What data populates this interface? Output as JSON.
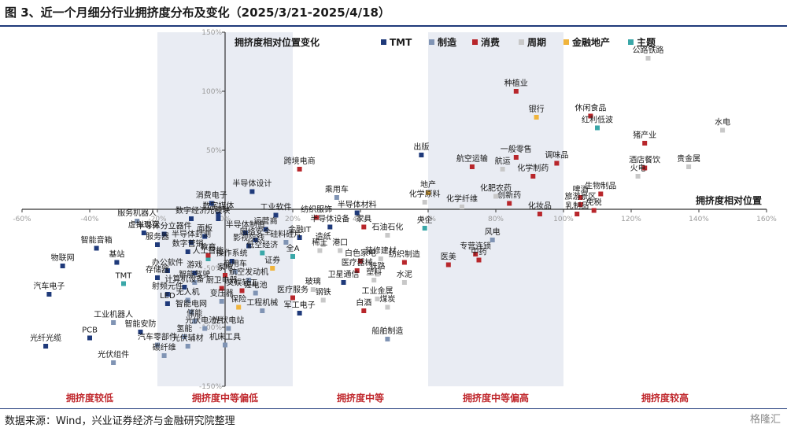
{
  "title": "图 3、近一个月细分行业拥挤度分布及变化（2025/3/21-2025/4/18）",
  "source": "数据来源：Wind，兴业证券经济与金融研究院整理",
  "watermark": "格隆汇",
  "chart_data": {
    "type": "scatter",
    "xlim": [
      -0.6,
      1.6
    ],
    "ylim": [
      -1.5,
      1.5
    ],
    "x_ticks": [
      "-60%",
      "-40%",
      "-20%",
      "0%",
      "20%",
      "40%",
      "60%",
      "80%",
      "100%",
      "120%",
      "140%",
      "160%"
    ],
    "y_ticks": [
      "150%",
      "100%",
      "50%",
      "0%",
      "-50%",
      "-100%",
      "-150%"
    ],
    "xlabel": "拥挤度相对位置",
    "ylabel": "拥挤度相对位置变化",
    "legend": {
      "placement": "top",
      "entries": [
        {
          "key": "TMT",
          "label": "TMT",
          "color": "#1f3a7a"
        },
        {
          "key": "MFG",
          "label": "制造",
          "color": "#8094b4"
        },
        {
          "key": "CON",
          "label": "消费",
          "color": "#b8262b"
        },
        {
          "key": "CYC",
          "label": "周期",
          "color": "#c8c8c8"
        },
        {
          "key": "FIN",
          "label": "金融地产",
          "color": "#f0b43c"
        },
        {
          "key": "THM",
          "label": "主题",
          "color": "#3aa7a8"
        }
      ]
    },
    "zones": [
      {
        "label": "拥挤度较低",
        "x_range": [
          -0.6,
          -0.2
        ],
        "shaded": false
      },
      {
        "label": "拥挤度中等偏低",
        "x_range": [
          -0.2,
          0.2
        ],
        "shaded": true
      },
      {
        "label": "拥挤度中等",
        "x_range": [
          0.2,
          0.6
        ],
        "shaded": false
      },
      {
        "label": "拥挤度中等偏高",
        "x_range": [
          0.6,
          1.0
        ],
        "shaded": true
      },
      {
        "label": "拥挤度较高",
        "x_range": [
          1.0,
          1.6
        ],
        "shaded": false
      }
    ],
    "points": [
      {
        "name": "公路铁路",
        "x": 1.25,
        "y": 1.28,
        "group": "CYC"
      },
      {
        "name": "种植业",
        "x": 0.86,
        "y": 1.0,
        "group": "CON"
      },
      {
        "name": "银行",
        "x": 0.92,
        "y": 0.78,
        "group": "FIN"
      },
      {
        "name": "休闲食品",
        "x": 1.08,
        "y": 0.79,
        "group": "CON"
      },
      {
        "name": "红利低波",
        "x": 1.1,
        "y": 0.69,
        "group": "THM"
      },
      {
        "name": "水电",
        "x": 1.47,
        "y": 0.67,
        "group": "CYC"
      },
      {
        "name": "猪产业",
        "x": 1.24,
        "y": 0.56,
        "group": "CON"
      },
      {
        "name": "出版",
        "x": 0.58,
        "y": 0.46,
        "group": "TMT"
      },
      {
        "name": "一般零售",
        "x": 0.86,
        "y": 0.44,
        "group": "CON"
      },
      {
        "name": "调味品",
        "x": 0.98,
        "y": 0.39,
        "group": "CON"
      },
      {
        "name": "酒店餐饮",
        "x": 1.24,
        "y": 0.35,
        "group": "CON"
      },
      {
        "name": "贵金属",
        "x": 1.37,
        "y": 0.36,
        "group": "CYC"
      },
      {
        "name": "航空运输",
        "x": 0.73,
        "y": 0.36,
        "group": "CON"
      },
      {
        "name": "航运",
        "x": 0.82,
        "y": 0.34,
        "group": "CYC"
      },
      {
        "name": "火电",
        "x": 1.22,
        "y": 0.28,
        "group": "CYC"
      },
      {
        "name": "跨境电商",
        "x": 0.22,
        "y": 0.34,
        "group": "CON"
      },
      {
        "name": "化学制药",
        "x": 0.91,
        "y": 0.28,
        "group": "CON"
      },
      {
        "name": "半导体设计",
        "x": 0.08,
        "y": 0.15,
        "group": "TMT"
      },
      {
        "name": "乘用车",
        "x": 0.33,
        "y": 0.1,
        "group": "MFG"
      },
      {
        "name": "地产",
        "x": 0.6,
        "y": 0.14,
        "group": "FIN"
      },
      {
        "name": "化学原料",
        "x": 0.59,
        "y": 0.06,
        "group": "CYC"
      },
      {
        "name": "化肥农药",
        "x": 0.8,
        "y": 0.11,
        "group": "CYC"
      },
      {
        "name": "创新药",
        "x": 0.84,
        "y": 0.05,
        "group": "CON"
      },
      {
        "name": "化学纤维",
        "x": 0.7,
        "y": 0.02,
        "group": "CYC"
      },
      {
        "name": "啤酒",
        "x": 1.05,
        "y": 0.1,
        "group": "CON"
      },
      {
        "name": "生物制品",
        "x": 1.11,
        "y": 0.13,
        "group": "CON"
      },
      {
        "name": "旅游景区",
        "x": 1.05,
        "y": 0.04,
        "group": "CON"
      },
      {
        "name": "免税",
        "x": 1.09,
        "y": -0.01,
        "group": "CON"
      },
      {
        "name": "乳制品",
        "x": 1.04,
        "y": -0.04,
        "group": "CON"
      },
      {
        "name": "化妆品",
        "x": 0.93,
        "y": -0.04,
        "group": "CON"
      },
      {
        "name": "消费电子",
        "x": -0.04,
        "y": 0.05,
        "group": "TMT"
      },
      {
        "name": "数字媒体",
        "x": -0.02,
        "y": -0.04,
        "group": "TMT"
      },
      {
        "name": "数字经济",
        "x": -0.1,
        "y": -0.08,
        "group": "TMT"
      },
      {
        "name": "光模块",
        "x": -0.02,
        "y": -0.08,
        "group": "TMT"
      },
      {
        "name": "服务机器人",
        "x": -0.26,
        "y": -0.1,
        "group": "MFG"
      },
      {
        "name": "虚拟现实",
        "x": -0.24,
        "y": -0.2,
        "group": "TMT"
      },
      {
        "name": "半导体分立器件",
        "x": -0.18,
        "y": -0.21,
        "group": "TMT"
      },
      {
        "name": "面板",
        "x": -0.06,
        "y": -0.23,
        "group": "TMT"
      },
      {
        "name": "半导体封测",
        "x": -0.1,
        "y": -0.28,
        "group": "TMT"
      },
      {
        "name": "服务器",
        "x": -0.2,
        "y": -0.3,
        "group": "TMT"
      },
      {
        "name": "智能音箱",
        "x": -0.38,
        "y": -0.33,
        "group": "TMT"
      },
      {
        "name": "数字营销",
        "x": -0.11,
        "y": -0.36,
        "group": "TMT"
      },
      {
        "name": "基站",
        "x": -0.32,
        "y": -0.45,
        "group": "TMT"
      },
      {
        "name": "人工智能",
        "x": -0.05,
        "y": -0.42,
        "group": "THM"
      },
      {
        "name": "物联网",
        "x": -0.48,
        "y": -0.48,
        "group": "TMT"
      },
      {
        "name": "工业软件",
        "x": 0.15,
        "y": -0.05,
        "group": "TMT"
      },
      {
        "name": "纺织服饰",
        "x": 0.27,
        "y": -0.07,
        "group": "CON"
      },
      {
        "name": "半导体材料",
        "x": 0.39,
        "y": -0.03,
        "group": "TMT"
      },
      {
        "name": "家具",
        "x": 0.41,
        "y": -0.15,
        "group": "CON"
      },
      {
        "name": "运营商",
        "x": 0.12,
        "y": -0.17,
        "group": "TMT"
      },
      {
        "name": "半导体设备",
        "x": 0.31,
        "y": -0.15,
        "group": "TMT"
      },
      {
        "name": "半导体制造",
        "x": 0.06,
        "y": -0.2,
        "group": "TMT"
      },
      {
        "name": "金融IT",
        "x": 0.22,
        "y": -0.24,
        "group": "TMT"
      },
      {
        "name": "央企",
        "x": 0.59,
        "y": -0.16,
        "group": "THM"
      },
      {
        "name": "石油石化",
        "x": 0.48,
        "y": -0.22,
        "group": "CYC"
      },
      {
        "name": "网络安全",
        "x": 0.09,
        "y": -0.26,
        "group": "TMT"
      },
      {
        "name": "硅料硅片",
        "x": 0.18,
        "y": -0.28,
        "group": "MFG"
      },
      {
        "name": "影视院线",
        "x": 0.07,
        "y": -0.31,
        "group": "TMT"
      },
      {
        "name": "造纸",
        "x": 0.29,
        "y": -0.3,
        "group": "CYC"
      },
      {
        "name": "风电",
        "x": 0.79,
        "y": -0.26,
        "group": "MFG"
      },
      {
        "name": "教育",
        "x": -0.05,
        "y": -0.39,
        "group": "CON"
      },
      {
        "name": "低空经济",
        "x": 0.11,
        "y": -0.37,
        "group": "THM"
      },
      {
        "name": "稀土",
        "x": 0.28,
        "y": -0.35,
        "group": "CYC"
      },
      {
        "name": "全A",
        "x": 0.2,
        "y": -0.4,
        "group": "THM"
      },
      {
        "name": "港口",
        "x": 0.34,
        "y": -0.35,
        "group": "CYC"
      },
      {
        "name": "专营连锁",
        "x": 0.74,
        "y": -0.38,
        "group": "CON"
      },
      {
        "name": "中药",
        "x": 0.75,
        "y": -0.43,
        "group": "CON"
      },
      {
        "name": "操作系统",
        "x": 0.02,
        "y": -0.44,
        "group": "TMT"
      },
      {
        "name": "证券",
        "x": 0.14,
        "y": -0.5,
        "group": "FIN"
      },
      {
        "name": "商用车",
        "x": 0.03,
        "y": -0.53,
        "group": "MFG"
      },
      {
        "name": "装修建材",
        "x": 0.46,
        "y": -0.42,
        "group": "CYC"
      },
      {
        "name": "纺织制造",
        "x": 0.53,
        "y": -0.45,
        "group": "CON"
      },
      {
        "name": "医美",
        "x": 0.66,
        "y": -0.47,
        "group": "CON"
      },
      {
        "name": "医疗器械",
        "x": 0.39,
        "y": -0.52,
        "group": "CON"
      },
      {
        "name": "铁路",
        "x": 0.45,
        "y": -0.55,
        "group": "CYC"
      },
      {
        "name": "白色家电",
        "x": 0.4,
        "y": -0.44,
        "group": "CON"
      },
      {
        "name": "家电",
        "x": 0.0,
        "y": -0.56,
        "group": "CON"
      },
      {
        "name": "航空发动机",
        "x": 0.07,
        "y": -0.6,
        "group": "MFG"
      },
      {
        "name": "塑料",
        "x": 0.44,
        "y": -0.6,
        "group": "CYC"
      },
      {
        "name": "卫星通信",
        "x": 0.35,
        "y": -0.62,
        "group": "TMT"
      },
      {
        "name": "水泥",
        "x": 0.53,
        "y": -0.62,
        "group": "CYC"
      },
      {
        "name": "办公软件",
        "x": -0.17,
        "y": -0.52,
        "group": "TMT"
      },
      {
        "name": "游戏",
        "x": -0.09,
        "y": -0.54,
        "group": "TMT"
      },
      {
        "name": "存储器",
        "x": -0.2,
        "y": -0.58,
        "group": "TMT"
      },
      {
        "name": "TMT",
        "x": -0.3,
        "y": -0.63,
        "group": "THM"
      },
      {
        "name": "智能驾驶",
        "x": -0.09,
        "y": -0.62,
        "group": "MFG"
      },
      {
        "name": "厨卫电器",
        "x": -0.01,
        "y": -0.67,
        "group": "CON"
      },
      {
        "name": "计算机设备",
        "x": -0.12,
        "y": -0.66,
        "group": "TMT"
      },
      {
        "name": "锂电池",
        "x": 0.09,
        "y": -0.71,
        "group": "MFG"
      },
      {
        "name": "文娱轻工",
        "x": 0.05,
        "y": -0.69,
        "group": "CON"
      },
      {
        "name": "玻璃",
        "x": 0.26,
        "y": -0.68,
        "group": "CYC"
      },
      {
        "name": "汽车电子",
        "x": -0.52,
        "y": -0.72,
        "group": "TMT"
      },
      {
        "name": "射频元件",
        "x": -0.17,
        "y": -0.72,
        "group": "TMT"
      },
      {
        "name": "医疗服务",
        "x": 0.2,
        "y": -0.75,
        "group": "CON"
      },
      {
        "name": "LED",
        "x": -0.17,
        "y": -0.8,
        "group": "TMT"
      },
      {
        "name": "无人机",
        "x": -0.11,
        "y": -0.77,
        "group": "MFG"
      },
      {
        "name": "变压器",
        "x": -0.01,
        "y": -0.78,
        "group": "MFG"
      },
      {
        "name": "钢铁",
        "x": 0.29,
        "y": -0.77,
        "group": "CYC"
      },
      {
        "name": "工业金属",
        "x": 0.45,
        "y": -0.76,
        "group": "CYC"
      },
      {
        "name": "保险",
        "x": 0.04,
        "y": -0.83,
        "group": "FIN"
      },
      {
        "name": "智能电网",
        "x": -0.1,
        "y": -0.87,
        "group": "MFG"
      },
      {
        "name": "工程机械",
        "x": 0.11,
        "y": -0.86,
        "group": "MFG"
      },
      {
        "name": "军工电子",
        "x": 0.22,
        "y": -0.88,
        "group": "TMT"
      },
      {
        "name": "白酒",
        "x": 0.41,
        "y": -0.86,
        "group": "CON"
      },
      {
        "name": "煤炭",
        "x": 0.48,
        "y": -0.83,
        "group": "CYC"
      },
      {
        "name": "工业机器人",
        "x": -0.33,
        "y": -0.96,
        "group": "MFG"
      },
      {
        "name": "储能",
        "x": -0.09,
        "y": -0.95,
        "group": "MFG"
      },
      {
        "name": "光伏电池片",
        "x": -0.06,
        "y": -1.01,
        "group": "MFG"
      },
      {
        "name": "智能安防",
        "x": -0.25,
        "y": -1.04,
        "group": "TMT"
      },
      {
        "name": "氢能",
        "x": -0.12,
        "y": -1.08,
        "group": "MFG"
      },
      {
        "name": "光伏电站",
        "x": 0.01,
        "y": -1.01,
        "group": "MFG"
      },
      {
        "name": "PCB",
        "x": -0.4,
        "y": -1.09,
        "group": "TMT"
      },
      {
        "name": "光纤光缆",
        "x": -0.53,
        "y": -1.16,
        "group": "TMT"
      },
      {
        "name": "汽车零部件",
        "x": -0.2,
        "y": -1.15,
        "group": "MFG"
      },
      {
        "name": "光伏辅材",
        "x": -0.11,
        "y": -1.16,
        "group": "MFG"
      },
      {
        "name": "机床工具",
        "x": 0.0,
        "y": -1.15,
        "group": "MFG"
      },
      {
        "name": "船舶制造",
        "x": 0.48,
        "y": -1.1,
        "group": "MFG"
      },
      {
        "name": "碳纤维",
        "x": -0.18,
        "y": -1.24,
        "group": "MFG"
      },
      {
        "name": "光伏组件",
        "x": -0.33,
        "y": -1.3,
        "group": "MFG"
      }
    ]
  }
}
